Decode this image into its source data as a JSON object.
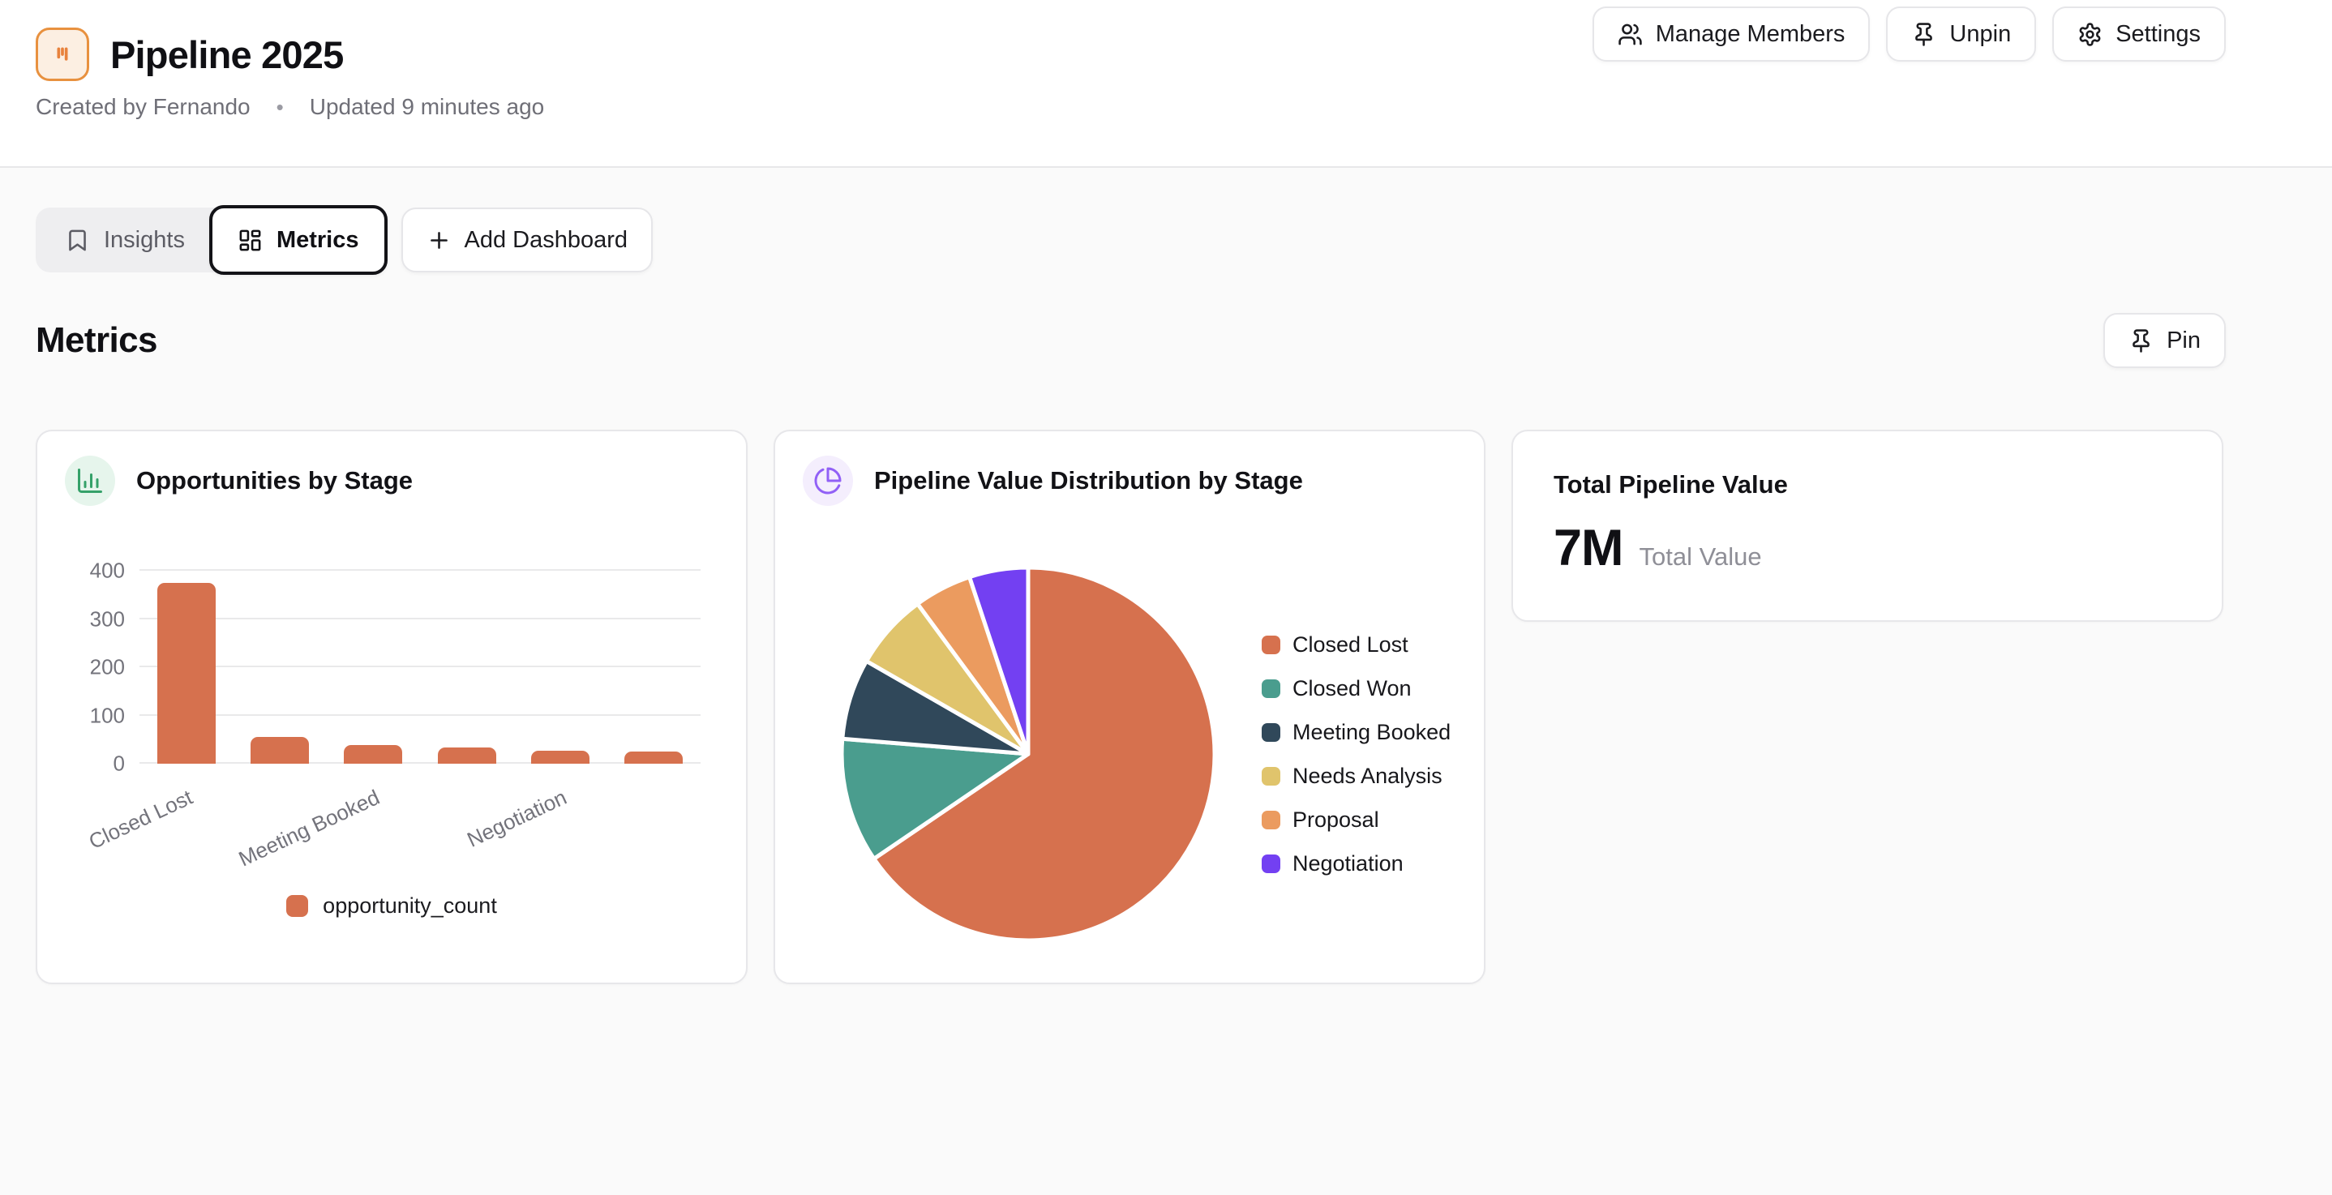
{
  "header": {
    "title": "Pipeline 2025",
    "created_by": "Created by Fernando",
    "separator": "•",
    "updated": "Updated 9 minutes ago",
    "buttons": {
      "manage_members": "Manage Members",
      "unpin": "Unpin",
      "settings": "Settings"
    }
  },
  "tabs": {
    "insights": "Insights",
    "metrics": "Metrics",
    "add_dashboard": "Add Dashboard"
  },
  "section": {
    "title": "Metrics",
    "pin_label": "Pin"
  },
  "cards": {
    "opportunities": {
      "title": "Opportunities by Stage"
    },
    "pipeline_distribution": {
      "title": "Pipeline Value Distribution by Stage"
    },
    "total": {
      "title": "Total Pipeline Value",
      "value": "7M",
      "value_label": "Total Value"
    }
  },
  "colors": {
    "accent_salmon": "#d6714e",
    "app_icon_orange": "#e8913f",
    "bar_icon_green": "#35a169",
    "pie_icon_purple": "#9160f6",
    "page_background": "#fafafa",
    "card_border": "#e7e7ea",
    "muted_text": "#73737b"
  },
  "chart_data": [
    {
      "type": "bar",
      "title": "Opportunities by Stage",
      "categories": [
        "Closed Lost",
        "Closed Won",
        "Meeting Booked",
        "Needs Analysis",
        "Negotiation",
        "Proposal"
      ],
      "series": [
        {
          "name": "opportunity_count",
          "color": "#d6714e",
          "values": [
            375,
            55,
            38,
            33,
            27,
            25
          ]
        }
      ],
      "visible_xtick_labels": [
        {
          "slot": 0,
          "label": "Closed Lost"
        },
        {
          "slot": 2,
          "label": "Meeting Booked"
        },
        {
          "slot": 4,
          "label": "Negotiation"
        }
      ],
      "yticks": [
        0,
        100,
        200,
        300,
        400
      ],
      "ylim": [
        0,
        400
      ],
      "grid": true,
      "legend": {
        "position": "bottom"
      }
    },
    {
      "type": "pie",
      "title": "Pipeline Value Distribution by Stage",
      "labels": [
        "Closed Lost",
        "Closed Won",
        "Meeting Booked",
        "Needs Analysis",
        "Proposal",
        "Negotiation"
      ],
      "values_pct": [
        65.5,
        10.8,
        7.0,
        6.6,
        5.0,
        5.1
      ],
      "colors": [
        "#d6714e",
        "#4a9d8e",
        "#30485a",
        "#e0c46c",
        "#eb9b5f",
        "#7340f2"
      ],
      "start_angle_deg": 0,
      "clockwise": true,
      "legend": {
        "position": "right"
      }
    }
  ]
}
